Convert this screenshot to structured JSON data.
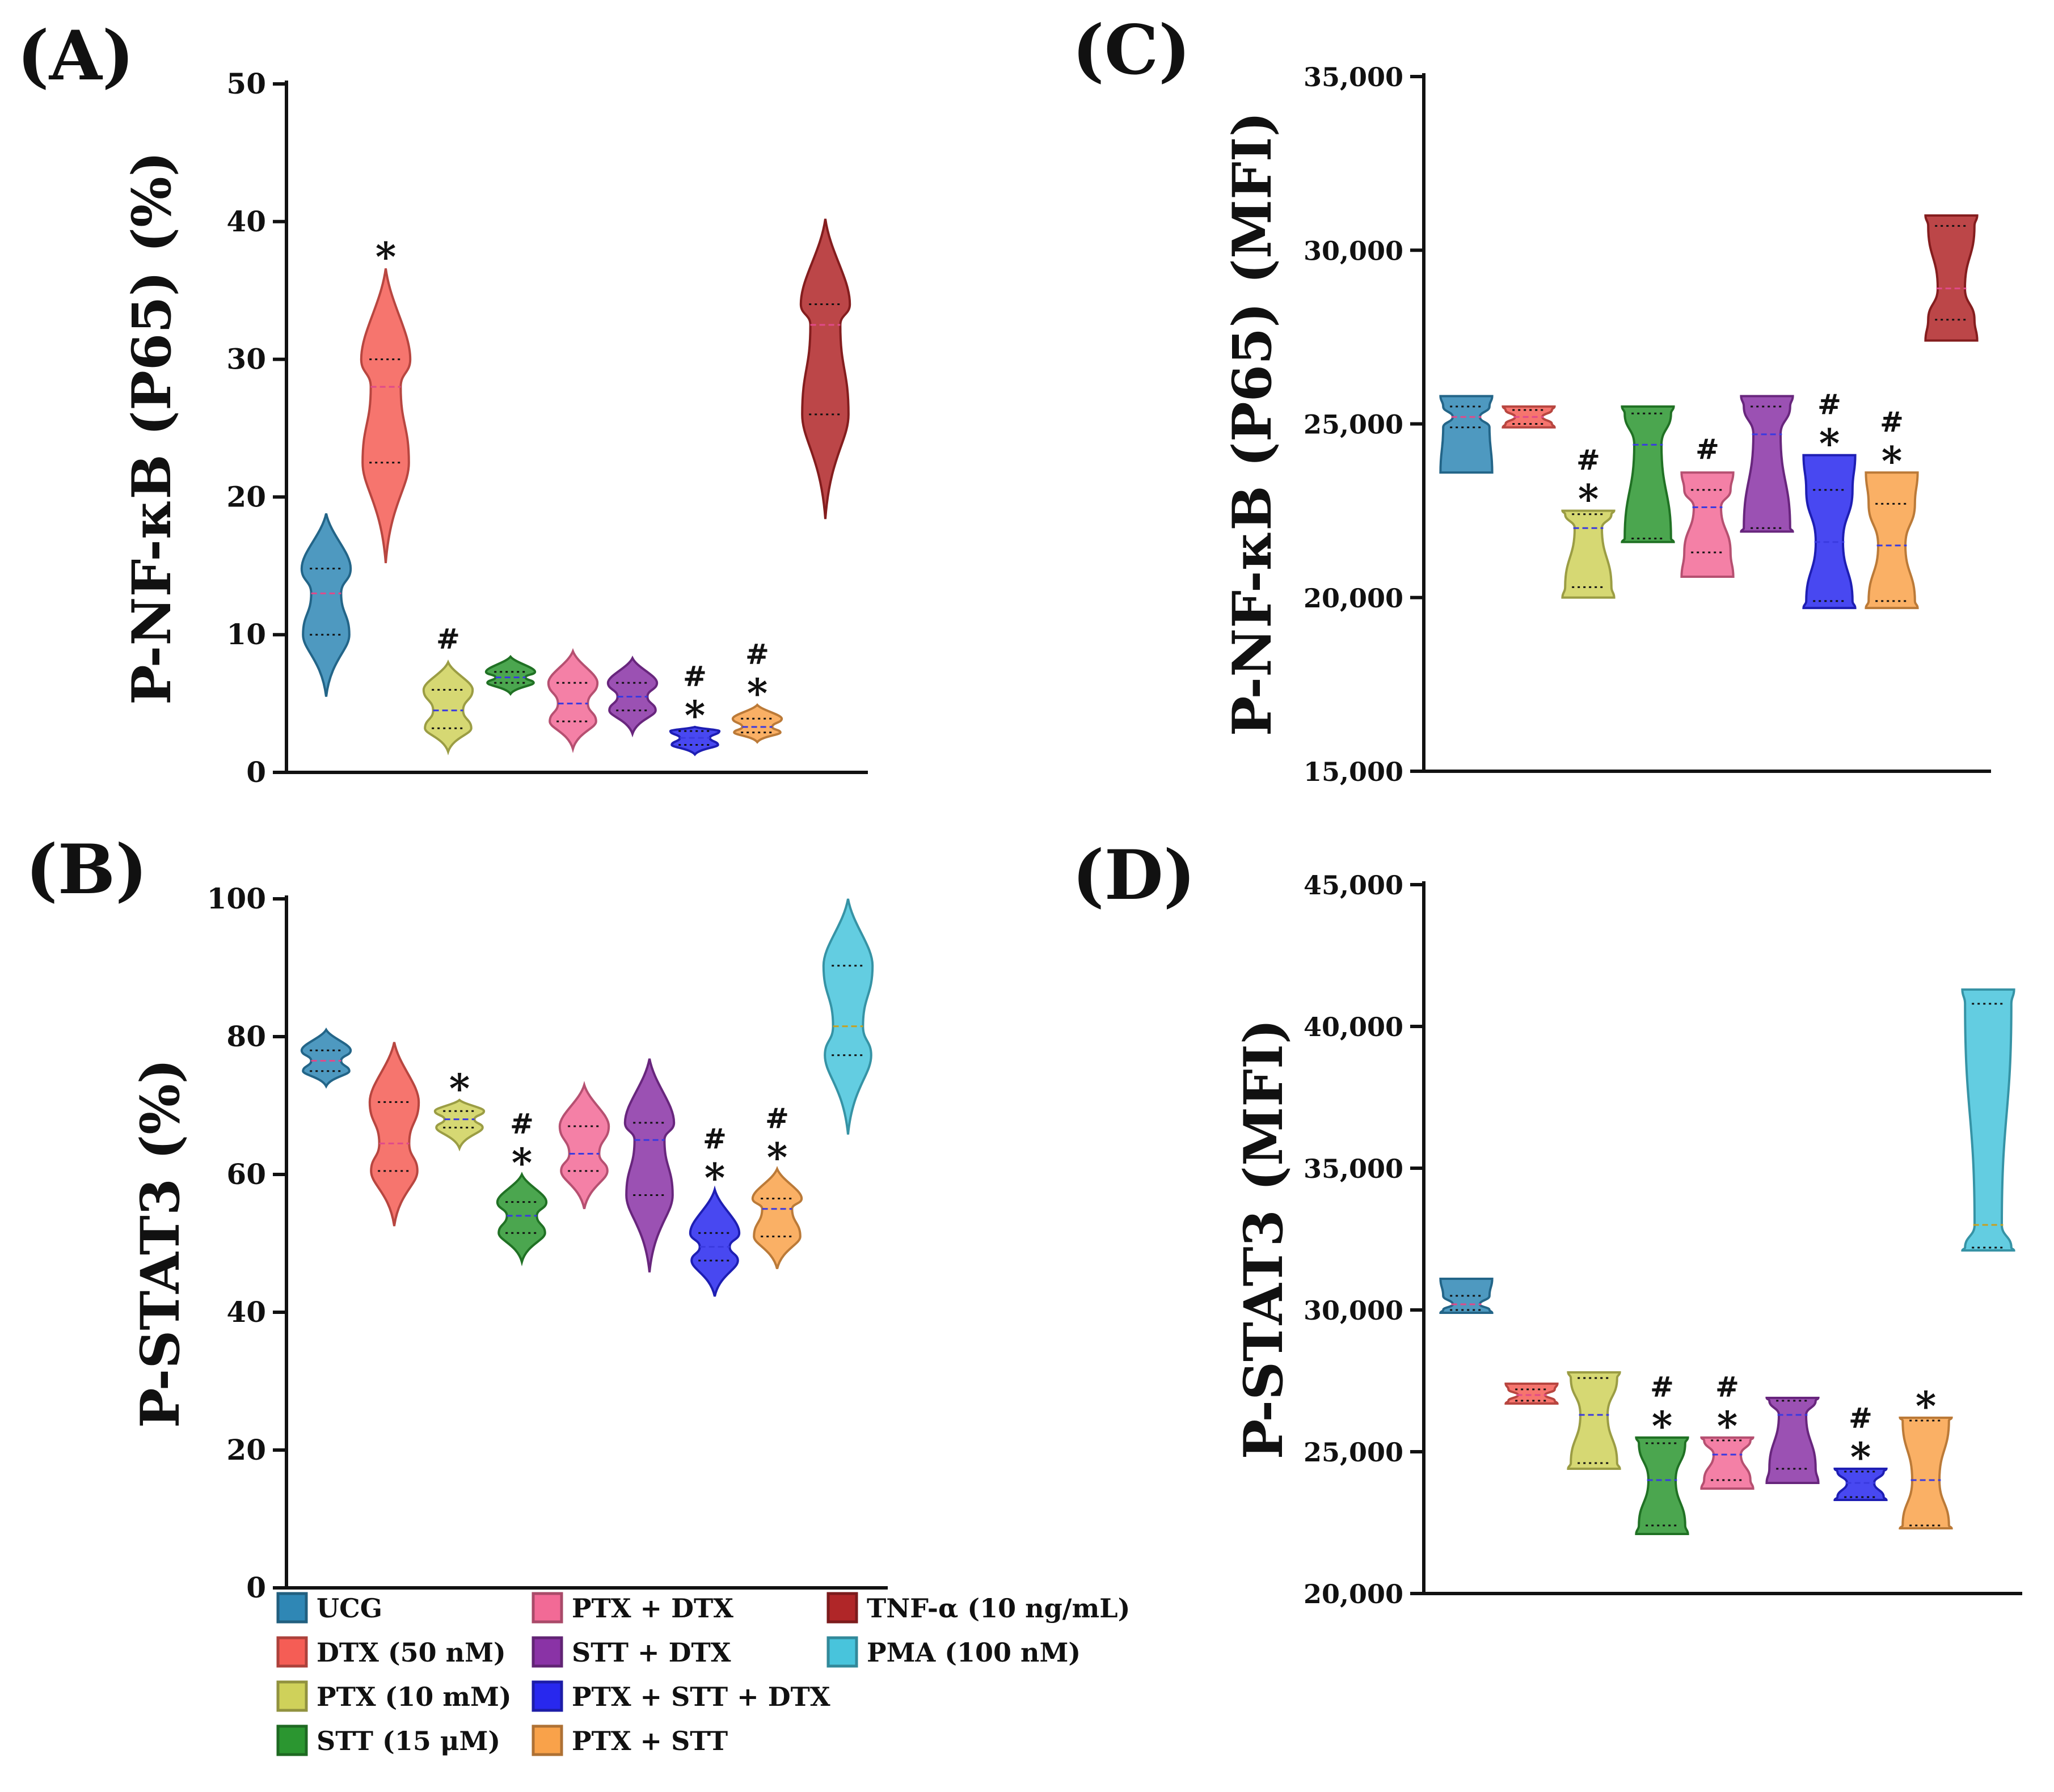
{
  "colors": {
    "UCG": "#2f87b5",
    "DTX": "#f55d55",
    "PTX": "#cfd15a",
    "STT": "#2b9630",
    "PTX_DTX": "#f26a96",
    "STT_DTX": "#8a33a6",
    "PTX_STT_DTX": "#2828ee",
    "PTX_STT": "#f9a24a",
    "TNF": "#b02628",
    "PMA": "#48c4dc"
  },
  "legend": [
    {
      "key": "UCG",
      "label": "UCG"
    },
    {
      "key": "DTX",
      "label": "DTX (50 nM)"
    },
    {
      "key": "PTX",
      "label": "PTX (10 mM)"
    },
    {
      "key": "STT",
      "label": "STT (15 μM)"
    },
    {
      "key": "PTX_DTX",
      "label": "PTX + DTX"
    },
    {
      "key": "STT_DTX",
      "label": "STT + DTX"
    },
    {
      "key": "PTX_STT_DTX",
      "label": "PTX + STT + DTX"
    },
    {
      "key": "PTX_STT",
      "label": "PTX + STT"
    },
    {
      "key": "TNF",
      "label": "TNF-α (10 ng/mL)"
    },
    {
      "key": "PMA",
      "label": "PMA (100 nM)"
    }
  ],
  "chart_data": [
    {
      "id": "A",
      "panel_label": "(A)",
      "type": "violin",
      "ylabel": "P-NF-κB (P65)  (%)",
      "ylim": [
        0,
        50
      ],
      "yticks": [
        0,
        10,
        20,
        30,
        40,
        50
      ],
      "tick_labels": [
        "0",
        "10",
        "20",
        "30",
        "40",
        "50"
      ],
      "groups": [
        {
          "key": "UCG",
          "min": 5.5,
          "q1": 10,
          "median": 13,
          "q3": 14.8,
          "max": 18.8,
          "annot": ""
        },
        {
          "key": "DTX",
          "min": 15.2,
          "q1": 22.5,
          "median": 28,
          "q3": 30,
          "max": 36.6,
          "annot": "*"
        },
        {
          "key": "PTX",
          "min": 1.5,
          "q1": 3.2,
          "median": 4.5,
          "q3": 6,
          "max": 8,
          "annot": "#"
        },
        {
          "key": "STT",
          "min": 5.7,
          "q1": 6.5,
          "median": 6.9,
          "q3": 7.3,
          "max": 8.4,
          "annot": ""
        },
        {
          "key": "PTX_DTX",
          "min": 1.7,
          "q1": 3.7,
          "median": 5,
          "q3": 6.5,
          "max": 8.8,
          "annot": ""
        },
        {
          "key": "STT_DTX",
          "min": 2.8,
          "q1": 4.5,
          "median": 5.5,
          "q3": 6.5,
          "max": 8.3,
          "annot": ""
        },
        {
          "key": "PTX_STT_DTX",
          "min": 1.3,
          "q1": 2,
          "median": 2.5,
          "q3": 3,
          "max": 3.3,
          "annot": "#*"
        },
        {
          "key": "PTX_STT",
          "min": 2.2,
          "q1": 2.9,
          "median": 3.3,
          "q3": 3.9,
          "max": 4.9,
          "annot": "#*"
        },
        {
          "key": "TNF",
          "min": 18.4,
          "q1": 26,
          "median": 32.5,
          "q3": 34,
          "max": 40.2,
          "annot": ""
        }
      ]
    },
    {
      "id": "B",
      "panel_label": "(B)",
      "type": "violin",
      "ylabel": "P-STAT3  (%)",
      "ylim": [
        0,
        100
      ],
      "yticks": [
        0,
        20,
        40,
        60,
        80,
        100
      ],
      "tick_labels": [
        "0",
        "20",
        "40",
        "60",
        "80",
        "100"
      ],
      "groups": [
        {
          "key": "UCG",
          "min": 72.8,
          "q1": 75,
          "median": 76.5,
          "q3": 78,
          "max": 81,
          "annot": ""
        },
        {
          "key": "DTX",
          "min": 52.5,
          "q1": 60.5,
          "median": 64.5,
          "q3": 70.5,
          "max": 79.2,
          "annot": ""
        },
        {
          "key": "PTX",
          "min": 63.8,
          "q1": 66.8,
          "median": 68,
          "q3": 69.2,
          "max": 70.8,
          "annot": "*"
        },
        {
          "key": "STT",
          "min": 47.3,
          "q1": 51.5,
          "median": 54,
          "q3": 56,
          "max": 60,
          "annot": "#*"
        },
        {
          "key": "PTX_DTX",
          "min": 55,
          "q1": 60.5,
          "median": 63,
          "q3": 67,
          "max": 73,
          "annot": ""
        },
        {
          "key": "STT_DTX",
          "min": 45.8,
          "q1": 57,
          "median": 65,
          "q3": 67.5,
          "max": 76.8,
          "annot": ""
        },
        {
          "key": "PTX_STT_DTX",
          "min": 42.3,
          "q1": 47.5,
          "median": 49.5,
          "q3": 51.5,
          "max": 57.8,
          "annot": "#*"
        },
        {
          "key": "PTX_STT",
          "min": 46.3,
          "q1": 51,
          "median": 55,
          "q3": 56.5,
          "max": 60.8,
          "annot": "#*"
        },
        {
          "key": "PMA",
          "min": 65.8,
          "q1": 77.3,
          "median": 81.5,
          "q3": 90.3,
          "max": 100,
          "annot": ""
        }
      ]
    },
    {
      "id": "C",
      "panel_label": "(C)",
      "type": "truncated-violin",
      "ylabel": "P-NF-κB (P65)  (MFI)",
      "ylim": [
        15000,
        35000
      ],
      "yticks": [
        15000,
        20000,
        25000,
        30000,
        35000
      ],
      "tick_labels": [
        "15,000",
        "20,000",
        "25,000",
        "30,000",
        "35,000"
      ],
      "groups": [
        {
          "key": "UCG",
          "min": 23600,
          "q1": 24900,
          "median": 25200,
          "q3": 25500,
          "max": 25800,
          "annot": ""
        },
        {
          "key": "DTX",
          "min": 24900,
          "q1": 25000,
          "median": 25200,
          "q3": 25400,
          "max": 25500,
          "annot": ""
        },
        {
          "key": "PTX",
          "min": 20000,
          "q1": 20300,
          "median": 22000,
          "q3": 22400,
          "max": 22500,
          "annot": "#*"
        },
        {
          "key": "STT",
          "min": 21600,
          "q1": 21700,
          "median": 24400,
          "q3": 25300,
          "max": 25500,
          "annot": ""
        },
        {
          "key": "PTX_DTX",
          "min": 20600,
          "q1": 21300,
          "median": 22600,
          "q3": 23100,
          "max": 23600,
          "annot": "#"
        },
        {
          "key": "STT_DTX",
          "min": 21900,
          "q1": 22000,
          "median": 24700,
          "q3": 25500,
          "max": 25800,
          "annot": ""
        },
        {
          "key": "PTX_STT_DTX",
          "min": 19700,
          "q1": 19900,
          "median": 21600,
          "q3": 23100,
          "max": 24100,
          "annot": "#*"
        },
        {
          "key": "PTX_STT",
          "min": 19700,
          "q1": 19900,
          "median": 21500,
          "q3": 22700,
          "max": 23600,
          "annot": "#*"
        },
        {
          "key": "TNF",
          "min": 27400,
          "q1": 28000,
          "median": 28900,
          "q3": 30700,
          "max": 31000,
          "annot": ""
        }
      ]
    },
    {
      "id": "D",
      "panel_label": "(D)",
      "type": "truncated-violin",
      "ylabel": "P-STAT3  (MFI)",
      "ylim": [
        20000,
        45000
      ],
      "yticks": [
        20000,
        25000,
        30000,
        35000,
        40000,
        45000
      ],
      "tick_labels": [
        "20,000",
        "25,000",
        "30,000",
        "35,000",
        "40,000",
        "45,000"
      ],
      "groups": [
        {
          "key": "UCG",
          "min": 29900,
          "q1": 30000,
          "median": 30200,
          "q3": 30500,
          "max": 31100,
          "annot": ""
        },
        {
          "key": "DTX",
          "min": 26700,
          "q1": 26800,
          "median": 27000,
          "q3": 27200,
          "max": 27400,
          "annot": ""
        },
        {
          "key": "PTX",
          "min": 24400,
          "q1": 24600,
          "median": 26300,
          "q3": 27600,
          "max": 27800,
          "annot": ""
        },
        {
          "key": "STT",
          "min": 22100,
          "q1": 22400,
          "median": 24000,
          "q3": 25300,
          "max": 25500,
          "annot": "#*"
        },
        {
          "key": "PTX_DTX",
          "min": 23700,
          "q1": 24000,
          "median": 24900,
          "q3": 25400,
          "max": 25500,
          "annot": "#*"
        },
        {
          "key": "STT_DTX",
          "min": 23900,
          "q1": 24400,
          "median": 26300,
          "q3": 26800,
          "max": 26900,
          "annot": ""
        },
        {
          "key": "PTX_STT_DTX",
          "min": 23300,
          "q1": 23400,
          "median": 23900,
          "q3": 24300,
          "max": 24400,
          "annot": "#*"
        },
        {
          "key": "PTX_STT",
          "min": 22300,
          "q1": 22400,
          "median": 24000,
          "q3": 26100,
          "max": 26200,
          "annot": "*"
        },
        {
          "key": "PMA",
          "min": 32100,
          "q1": 32200,
          "median": 33000,
          "q3": 40800,
          "max": 41300,
          "annot": ""
        }
      ]
    }
  ]
}
